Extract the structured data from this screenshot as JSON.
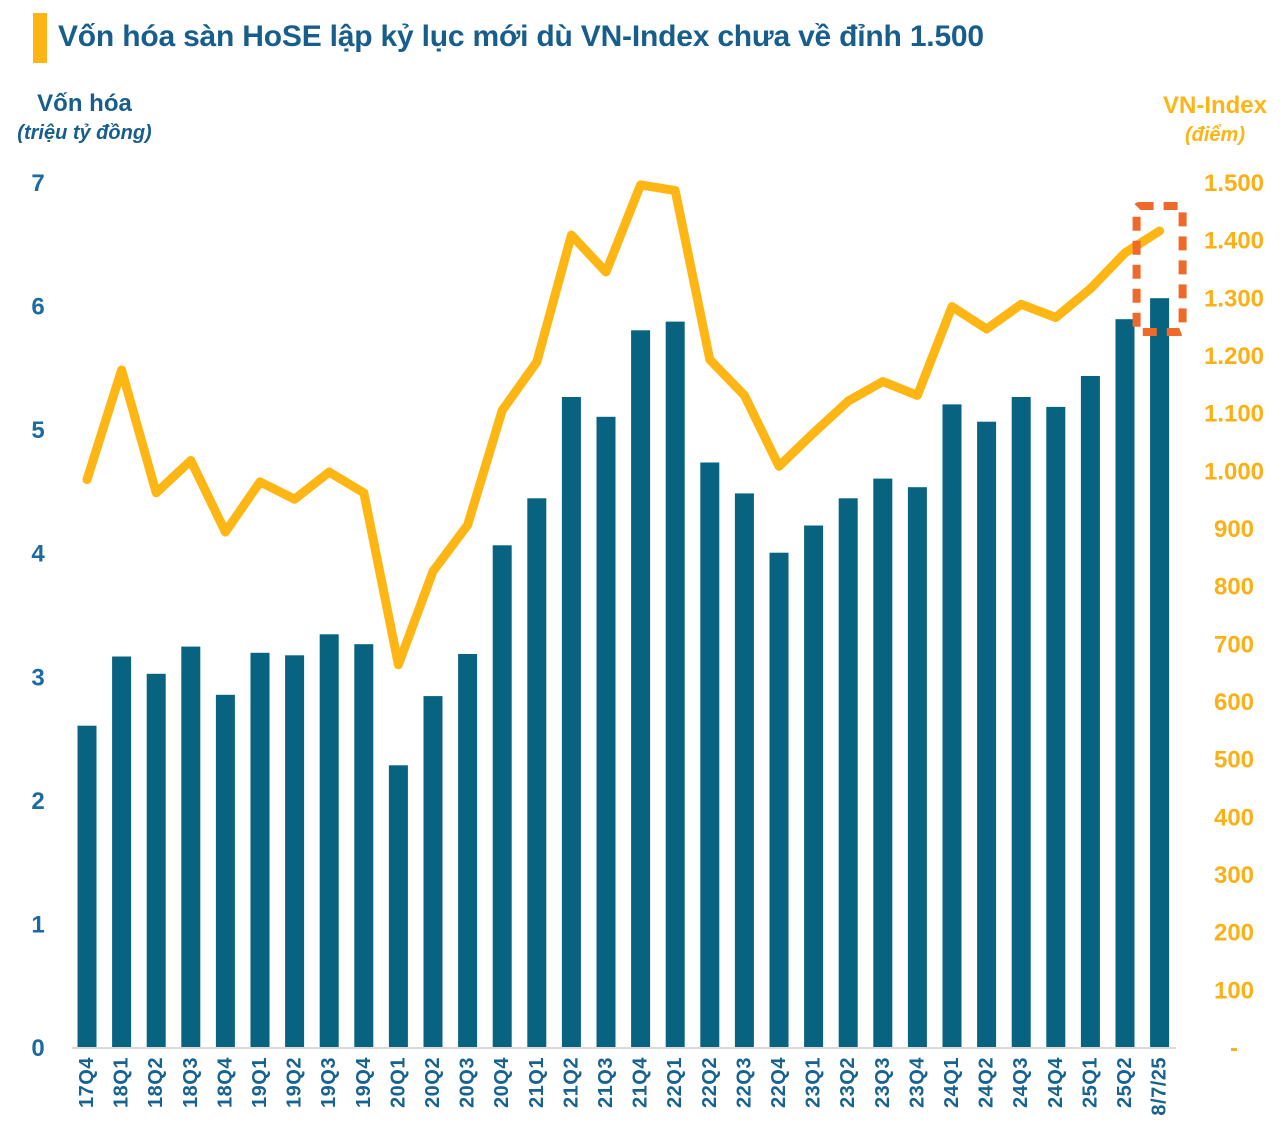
{
  "title": "Vốn hóa sàn HoSE lập kỷ lục mới dù VN-Index chưa về đỉnh 1.500",
  "left_axis": {
    "title": "Vốn hóa",
    "subtitle": "(triệu tỷ đồng)"
  },
  "right_axis": {
    "title": "VN-Index",
    "subtitle": "(điểm)"
  },
  "colors": {
    "bar": "#086380",
    "line": "#FEB614",
    "blue_text": "#175E8C",
    "gold_text": "#FDB014",
    "accent": "#FDB515",
    "highlight_box": "#EE6A2B",
    "baseline": "#D9D9D9"
  },
  "chart_data": {
    "type": "bar+line",
    "title": "Vốn hóa sàn HoSE lập kỷ lục mới dù VN-Index chưa về đỉnh 1.500",
    "categories": [
      "17Q4",
      "18Q1",
      "18Q2",
      "18Q3",
      "18Q4",
      "19Q1",
      "19Q2",
      "19Q3",
      "19Q4",
      "20Q1",
      "20Q2",
      "20Q3",
      "20Q4",
      "21Q1",
      "21Q2",
      "21Q3",
      "21Q4",
      "22Q1",
      "22Q2",
      "22Q3",
      "22Q4",
      "23Q1",
      "23Q2",
      "23Q3",
      "23Q4",
      "24Q1",
      "24Q2",
      "24Q3",
      "24Q4",
      "25Q1",
      "25Q2",
      "8/7/25"
    ],
    "series": [
      {
        "name": "Vốn hóa (triệu tỷ đồng)",
        "type": "bar",
        "axis": "left",
        "values": [
          2.6,
          3.16,
          3.02,
          3.24,
          2.85,
          3.19,
          3.17,
          3.34,
          3.26,
          2.28,
          2.84,
          3.18,
          4.06,
          4.44,
          5.26,
          5.1,
          5.8,
          5.87,
          4.73,
          4.48,
          4.0,
          4.22,
          4.44,
          4.6,
          4.53,
          5.2,
          5.06,
          5.26,
          5.18,
          5.43,
          5.89,
          6.06
        ]
      },
      {
        "name": "VN-Index (điểm)",
        "type": "line",
        "axis": "right",
        "values": [
          984,
          1174,
          961,
          1017,
          893,
          980,
          950,
          997,
          961,
          663,
          825,
          905,
          1104,
          1188,
          1408,
          1344,
          1495,
          1485,
          1192,
          1130,
          1007,
          1065,
          1120,
          1154,
          1130,
          1284,
          1245,
          1288,
          1265,
          1315,
          1377,
          1415
        ]
      }
    ],
    "left_range": [
      0,
      7
    ],
    "right_range": [
      0,
      1500
    ],
    "left_ticks": [
      {
        "label": "7",
        "value": 7
      },
      {
        "label": "6",
        "value": 6
      },
      {
        "label": "5",
        "value": 5
      },
      {
        "label": "4",
        "value": 4
      },
      {
        "label": "3",
        "value": 3
      },
      {
        "label": "2",
        "value": 2
      },
      {
        "label": "1",
        "value": 1
      },
      {
        "label": "0",
        "value": 0
      }
    ],
    "right_ticks": [
      {
        "label": "1.500",
        "value": 1500
      },
      {
        "label": "1.400",
        "value": 1400
      },
      {
        "label": "1.300",
        "value": 1300
      },
      {
        "label": "1.200",
        "value": 1200
      },
      {
        "label": "1.100",
        "value": 1100
      },
      {
        "label": "1.000",
        "value": 1000
      },
      {
        "label": "900",
        "value": 900
      },
      {
        "label": "800",
        "value": 800
      },
      {
        "label": "700",
        "value": 700
      },
      {
        "label": "600",
        "value": 600
      },
      {
        "label": "500",
        "value": 500
      },
      {
        "label": "400",
        "value": 400
      },
      {
        "label": "300",
        "value": 300
      },
      {
        "label": "200",
        "value": 200
      },
      {
        "label": "100",
        "value": 100
      },
      {
        "label": "-",
        "value": 0
      }
    ],
    "grid": false,
    "legend": "none",
    "highlight": {
      "target_category": "8/7/25"
    }
  }
}
